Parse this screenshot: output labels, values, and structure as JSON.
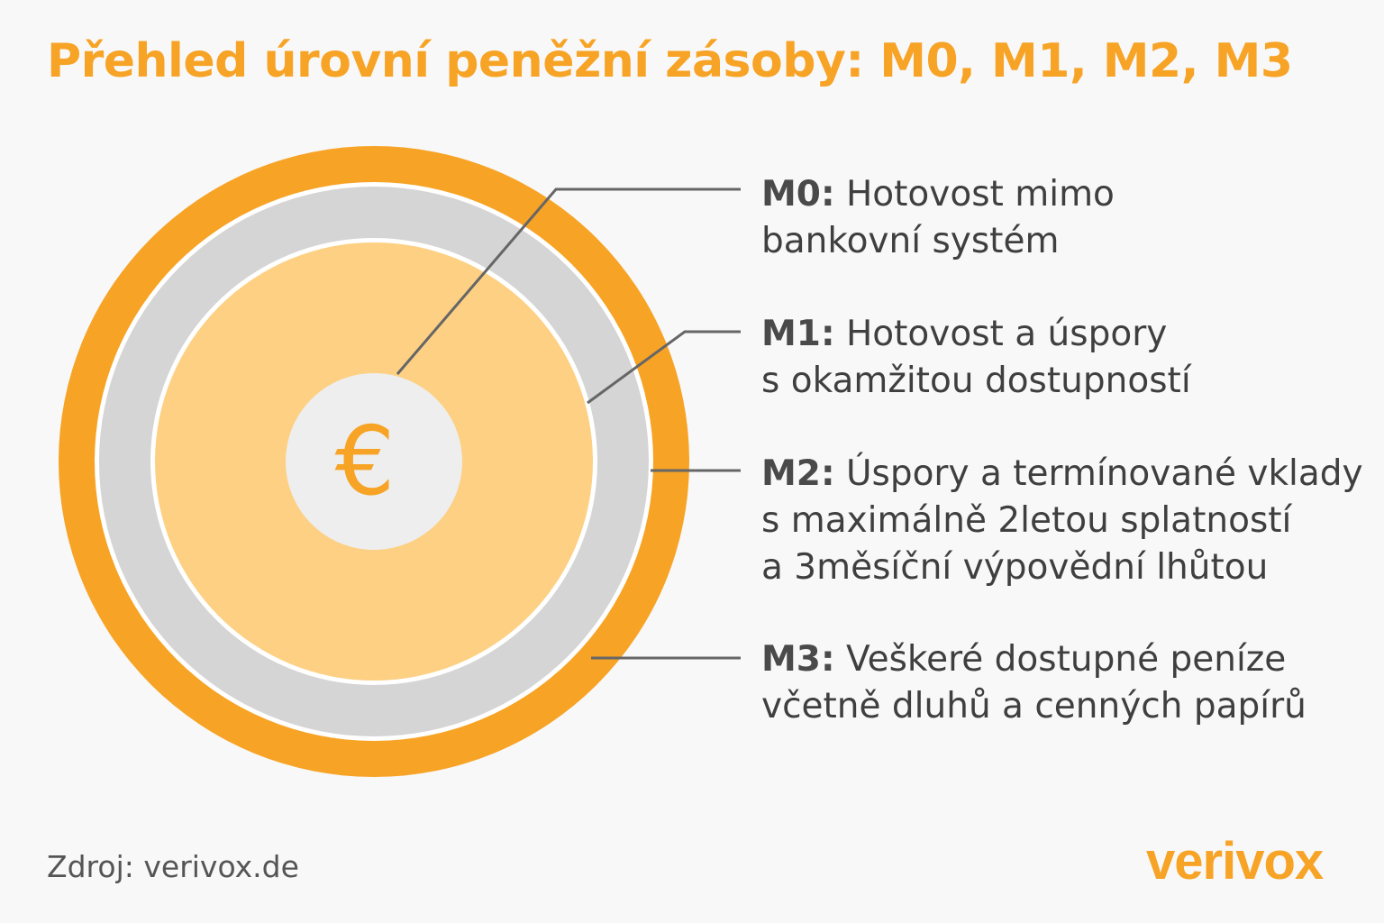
{
  "title": "Přehled úrovní peněžní zásoby: M0, M1, M2, M3",
  "center_symbol": "€",
  "levels": [
    {
      "key": "M0:",
      "lines": [
        "Hotovost mimo",
        "bankovní systém"
      ]
    },
    {
      "key": "M1:",
      "lines": [
        "Hotovost a úspory",
        "s okamžitou dostupností"
      ]
    },
    {
      "key": "M2:",
      "lines": [
        "Úspory a termínované vklady",
        "s maximálně 2letou splatností",
        "a 3měsíční výpovědní lhůtou"
      ]
    },
    {
      "key": "M3:",
      "lines": [
        "Veškeré dostupné peníze",
        "včetně dluhů a cenných papírů"
      ]
    }
  ],
  "source": "Zdroj: verivox.de",
  "logo": "verivox",
  "colors": {
    "accent": "#f7a325",
    "light_orange": "#fdd083",
    "gray_ring": "#d5d5d5",
    "center": "#eeeeee",
    "leader": "#666666"
  }
}
